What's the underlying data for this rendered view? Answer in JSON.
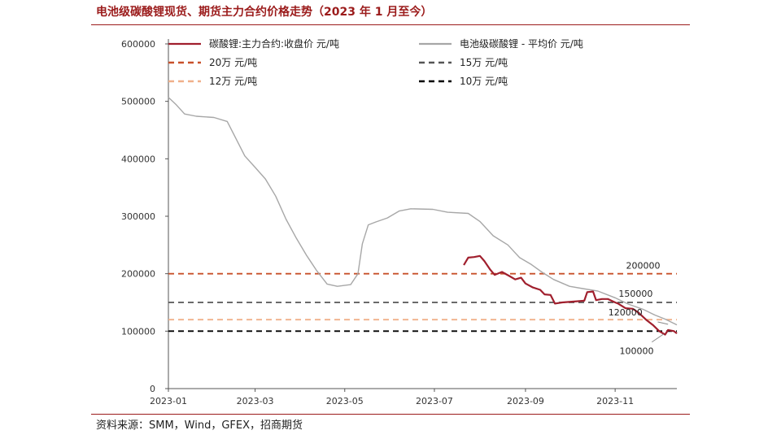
{
  "chart_data": {
    "type": "line",
    "title": "电池级碳酸锂现货、期货主力合约价格走势（2023 年 1 月至今）",
    "source": "资料来源：SMM，Wind，GFEX，招商期货",
    "x_ticks": [
      "2023-01",
      "2023-03",
      "2023-05",
      "2023-07",
      "2023-09",
      "2023-11"
    ],
    "y_ticks": [
      0,
      100000,
      200000,
      300000,
      400000,
      500000,
      600000
    ],
    "ylim": [
      0,
      600000
    ],
    "xlim": [
      "2023-01-01",
      "2023-12-13"
    ],
    "grid": false,
    "legend_position": "top",
    "series": [
      {
        "name": "碳酸锂:主力合约:收盘价 元/吨",
        "color": "#a01f2d",
        "style": "solid",
        "points": [
          [
            "2023-07-21",
            215000
          ],
          [
            "2023-07-24",
            228000
          ],
          [
            "2023-07-28",
            229000
          ],
          [
            "2023-08-01",
            231000
          ],
          [
            "2023-08-04",
            222000
          ],
          [
            "2023-08-08",
            207000
          ],
          [
            "2023-08-11",
            198000
          ],
          [
            "2023-08-16",
            203000
          ],
          [
            "2023-08-21",
            196000
          ],
          [
            "2023-08-25",
            190000
          ],
          [
            "2023-08-29",
            193000
          ],
          [
            "2023-09-01",
            183000
          ],
          [
            "2023-09-06",
            176000
          ],
          [
            "2023-09-11",
            172000
          ],
          [
            "2023-09-14",
            164000
          ],
          [
            "2023-09-18",
            163000
          ],
          [
            "2023-09-21",
            148000
          ],
          [
            "2023-09-26",
            150000
          ],
          [
            "2023-10-06",
            152000
          ],
          [
            "2023-10-11",
            153000
          ],
          [
            "2023-10-13",
            168000
          ],
          [
            "2023-10-17",
            169000
          ],
          [
            "2023-10-19",
            154000
          ],
          [
            "2023-10-23",
            156000
          ],
          [
            "2023-10-27",
            156000
          ],
          [
            "2023-11-01",
            150000
          ],
          [
            "2023-11-03",
            148000
          ],
          [
            "2023-11-08",
            140000
          ],
          [
            "2023-11-13",
            139000
          ],
          [
            "2023-11-17",
            132000
          ],
          [
            "2023-11-22",
            120000
          ],
          [
            "2023-11-27",
            110000
          ],
          [
            "2023-12-01",
            100000
          ],
          [
            "2023-12-05",
            94000
          ],
          [
            "2023-12-07",
            102000
          ],
          [
            "2023-12-11",
            100000
          ],
          [
            "2023-12-13",
            96000
          ]
        ]
      },
      {
        "name": "电池级碳酸锂 - 平均价 元/吨",
        "color": "#a7a7a7",
        "style": "solid",
        "points": [
          [
            "2023-01-01",
            507000
          ],
          [
            "2023-01-06",
            495000
          ],
          [
            "2023-01-12",
            478000
          ],
          [
            "2023-01-20",
            474000
          ],
          [
            "2023-02-01",
            472000
          ],
          [
            "2023-02-10",
            465000
          ],
          [
            "2023-02-15",
            440000
          ],
          [
            "2023-02-22",
            405000
          ],
          [
            "2023-03-01",
            385000
          ],
          [
            "2023-03-08",
            365000
          ],
          [
            "2023-03-15",
            335000
          ],
          [
            "2023-03-22",
            295000
          ],
          [
            "2023-03-29",
            262000
          ],
          [
            "2023-04-05",
            232000
          ],
          [
            "2023-04-12",
            205000
          ],
          [
            "2023-04-19",
            182000
          ],
          [
            "2023-04-26",
            178000
          ],
          [
            "2023-05-05",
            181000
          ],
          [
            "2023-05-10",
            200000
          ],
          [
            "2023-05-13",
            252000
          ],
          [
            "2023-05-17",
            285000
          ],
          [
            "2023-05-22",
            290000
          ],
          [
            "2023-05-30",
            297000
          ],
          [
            "2023-06-07",
            309000
          ],
          [
            "2023-06-15",
            313000
          ],
          [
            "2023-06-30",
            312000
          ],
          [
            "2023-07-10",
            307000
          ],
          [
            "2023-07-24",
            305000
          ],
          [
            "2023-08-01",
            291000
          ],
          [
            "2023-08-10",
            266000
          ],
          [
            "2023-08-20",
            250000
          ],
          [
            "2023-08-28",
            228000
          ],
          [
            "2023-09-05",
            216000
          ],
          [
            "2023-09-12",
            203000
          ],
          [
            "2023-09-20",
            190000
          ],
          [
            "2023-10-01",
            178000
          ],
          [
            "2023-10-10",
            174000
          ],
          [
            "2023-10-20",
            170000
          ],
          [
            "2023-11-01",
            158000
          ],
          [
            "2023-11-10",
            147000
          ],
          [
            "2023-11-20",
            138000
          ],
          [
            "2023-11-28",
            128000
          ],
          [
            "2023-12-05",
            121000
          ],
          [
            "2023-12-13",
            111000
          ]
        ]
      },
      {
        "name": "20万 元/吨",
        "color": "#c8502a",
        "style": "dashed",
        "value": 200000
      },
      {
        "name": "15万 元/吨",
        "color": "#555555",
        "style": "dashed",
        "value": 150000
      },
      {
        "name": "12万 元/吨",
        "color": "#f0b08a",
        "style": "dashed",
        "value": 120000
      },
      {
        "name": "10万 元/吨",
        "color": "#000000",
        "style": "dashed",
        "value": 100000
      }
    ],
    "annotations": [
      {
        "text": "200000",
        "x": "2023-11-20",
        "y": 200000
      },
      {
        "text": "150000",
        "x": "2023-11-15",
        "y": 150000
      },
      {
        "text": "120000",
        "x": "2023-11-08",
        "y": 120000
      },
      {
        "text": "100000",
        "x": "2023-11-20",
        "y": 100000
      }
    ]
  }
}
